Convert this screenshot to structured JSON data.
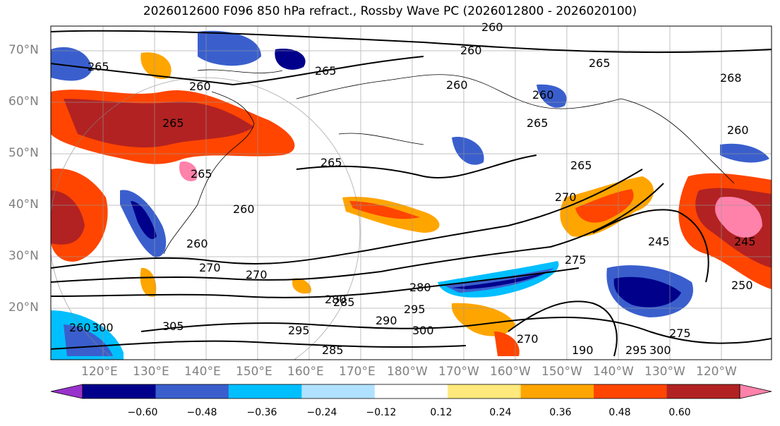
{
  "title": "2026012600 F096 850 hPa refract., Rossby Wave PC (2026012800 - 2026020100)",
  "map": {
    "lat_labels": [
      "70°N",
      "60°N",
      "50°N",
      "40°N",
      "30°N",
      "20°N"
    ],
    "lon_labels": [
      "120°E",
      "130°E",
      "140°E",
      "150°E",
      "160°E",
      "170°E",
      "180°W",
      "170°W",
      "160°W",
      "150°W",
      "140°W",
      "130°W",
      "120°W"
    ],
    "contour_labels": [
      "260",
      "260",
      "265",
      "265",
      "265",
      "260",
      "260",
      "265",
      "265",
      "265",
      "265",
      "260",
      "260",
      "270",
      "270",
      "270",
      "275",
      "280",
      "280",
      "285",
      "285",
      "290",
      "295",
      "295",
      "295",
      "300",
      "300",
      "305",
      "245",
      "250",
      "245",
      "270",
      "275",
      "190",
      "260",
      "268",
      "260",
      "260",
      "265",
      "300"
    ]
  },
  "colorbar": {
    "ticks": [
      "−0.60",
      "−0.48",
      "−0.36",
      "−0.24",
      "−0.12",
      "0.12",
      "0.24",
      "0.36",
      "0.48",
      "0.60"
    ],
    "colors": [
      "#9932cc",
      "#00008b",
      "#3a5fcd",
      "#00bfff",
      "#b0e2ff",
      "#ffffff",
      "#ffe87c",
      "#ffa500",
      "#ff4500",
      "#b22222",
      "#ff82ab"
    ]
  }
}
